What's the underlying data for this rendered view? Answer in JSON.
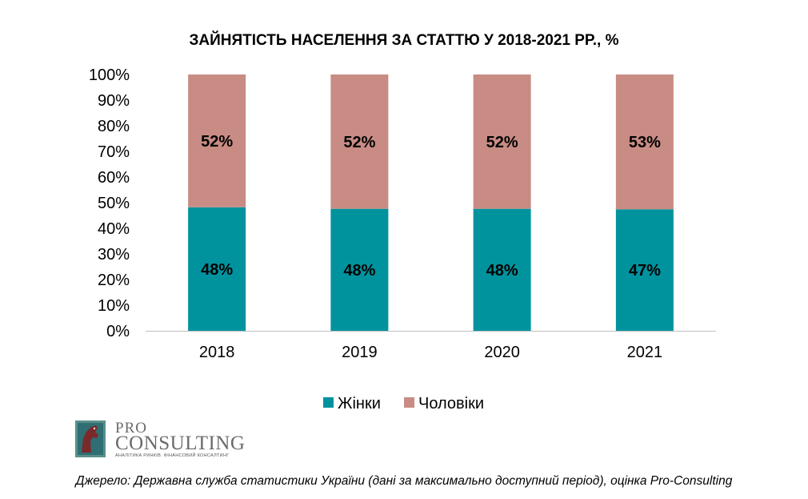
{
  "chart_data": {
    "type": "bar",
    "stacked": true,
    "title": "ЗАЙНЯТІСТЬ НАСЕЛЕННЯ ЗА СТАТТЮ У 2018-2021 РР., %",
    "xlabel": "",
    "ylabel": "",
    "categories": [
      "2018",
      "2019",
      "2020",
      "2021"
    ],
    "ylim": [
      0,
      100
    ],
    "yticks": [
      0,
      10,
      20,
      30,
      40,
      50,
      60,
      70,
      80,
      90,
      100
    ],
    "ytick_labels": [
      "0%",
      "10%",
      "20%",
      "30%",
      "40%",
      "50%",
      "60%",
      "70%",
      "80%",
      "90%",
      "100%"
    ],
    "series": [
      {
        "name": "Жінки",
        "color": "#00939e",
        "values": [
          48.2,
          47.6,
          47.6,
          47.4
        ],
        "labels": [
          "48%",
          "48%",
          "48%",
          "47%"
        ]
      },
      {
        "name": "Чоловіки",
        "color": "#c88c84",
        "values": [
          51.8,
          52.4,
          52.4,
          52.6
        ],
        "labels": [
          "52%",
          "52%",
          "52%",
          "53%"
        ]
      }
    ],
    "grid": false,
    "legend_position": "bottom"
  },
  "logo": {
    "pro": "PRO",
    "consulting": "CONSULTING",
    "tagline": "АНАЛІТИКА РИНКІВ. ФІНАНСОВИЙ КОНСАЛТИНГ"
  },
  "source": "Джерело: Державна служба статистики України (дані за максимально доступний період), оцінка Pro-Consulting"
}
